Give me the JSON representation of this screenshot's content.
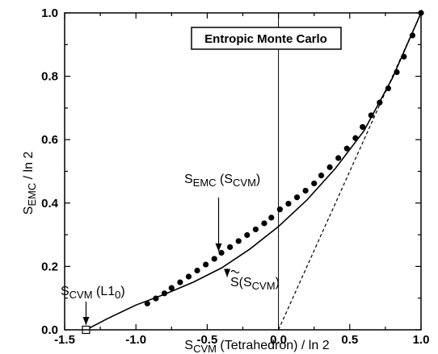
{
  "chart_data": {
    "type": "scatter",
    "title": "Entropic Monte Carlo",
    "xlabel": {
      "main": "S",
      "sub": "CVM",
      "rest": " (Tetrahedron) / ln 2"
    },
    "ylabel": {
      "main": "S",
      "sub": "EMC",
      "rest": " / ln 2"
    },
    "xlim": [
      -1.5,
      1.0
    ],
    "ylim": [
      0.0,
      1.0
    ],
    "xticks": [
      -1.5,
      -1.0,
      -0.5,
      0.0,
      0.5,
      1.0
    ],
    "xtick_labels": [
      "-1.5",
      "-1.0",
      "-0.5",
      "0.0",
      "0.5",
      "1.0"
    ],
    "yticks": [
      0.0,
      0.2,
      0.4,
      0.6,
      0.8,
      1.0
    ],
    "ytick_labels": [
      "0.0",
      "0.2",
      "0.4",
      "0.6",
      "0.8",
      "1.0"
    ],
    "grid": false,
    "vertical_line_x": 0.0,
    "series": [
      {
        "kind": "scatter",
        "marker": "filled-circle",
        "x": [
          -0.92,
          -0.86,
          -0.8,
          -0.75,
          -0.69,
          -0.63,
          -0.57,
          -0.51,
          -0.45,
          -0.4,
          -0.34,
          -0.28,
          -0.22,
          -0.16,
          -0.1,
          -0.05,
          0.01,
          0.07,
          0.13,
          0.19,
          0.25,
          0.3,
          0.36,
          0.42,
          0.48,
          0.54,
          0.59,
          0.65,
          0.71,
          0.77,
          0.83,
          0.88,
          0.94,
          1.0
        ],
        "y": [
          0.083,
          0.099,
          0.115,
          0.132,
          0.15,
          0.168,
          0.187,
          0.206,
          0.224,
          0.243,
          0.261,
          0.28,
          0.299,
          0.317,
          0.336,
          0.354,
          0.38,
          0.398,
          0.418,
          0.439,
          0.462,
          0.487,
          0.513,
          0.542,
          0.572,
          0.605,
          0.64,
          0.677,
          0.717,
          0.762,
          0.813,
          0.862,
          0.929,
          1.0
        ]
      },
      {
        "kind": "line",
        "style": "solid",
        "x": [
          -1.35,
          -1.2,
          -1.0,
          -0.8,
          -0.6,
          -0.4,
          -0.2,
          0.0,
          0.2,
          0.4,
          0.6,
          0.8,
          1.0
        ],
        "y": [
          0.0,
          0.035,
          0.078,
          0.112,
          0.15,
          0.195,
          0.255,
          0.326,
          0.41,
          0.51,
          0.628,
          0.795,
          1.0
        ]
      },
      {
        "kind": "line",
        "style": "dashed",
        "x": [
          0.0,
          1.0
        ],
        "y": [
          0.0,
          1.0
        ]
      },
      {
        "kind": "point",
        "marker": "open-square",
        "x": [
          -1.35
        ],
        "y": [
          0.0
        ]
      }
    ],
    "annotations": [
      {
        "id": "semc",
        "main": "S",
        "sub": "EMC",
        "mid": " (S",
        "sub2": "CVM",
        "end": ")",
        "at": [
          -0.42,
          0.232
        ]
      },
      {
        "id": "stilde",
        "main": "S",
        "tilde": true,
        "mid": "(S",
        "sub2": "CVM",
        "end": ")",
        "at": [
          -0.36,
          0.182
        ]
      },
      {
        "id": "l10",
        "main": "S",
        "sub": "CVM",
        "mid": " (L1",
        "sub2": "0",
        "end": ")",
        "at": [
          -1.35,
          0.0
        ]
      }
    ]
  }
}
